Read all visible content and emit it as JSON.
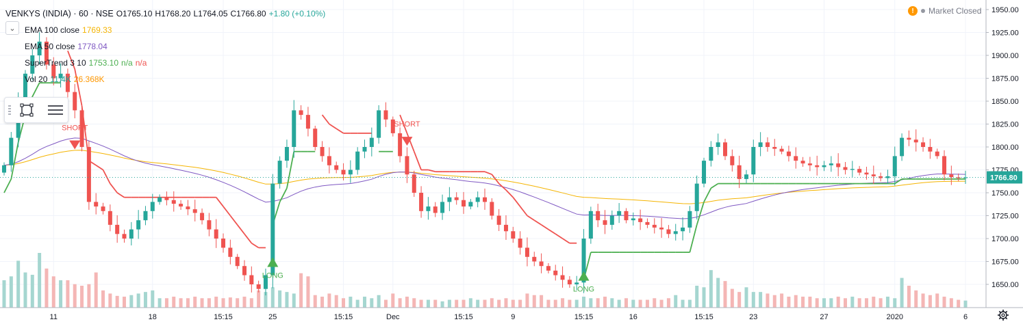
{
  "header": {
    "symbol": "VENKYS (INDIA) · 60 · NSE",
    "open": "O1765.10",
    "high": "H1768.20",
    "low": "L1764.05",
    "close": "C1766.80",
    "change": "+1.80 (+0.10%)",
    "market_status": "Market Closed"
  },
  "indicators": [
    {
      "label": "EMA 100 close",
      "value": "1769.33",
      "color": "#f5b400"
    },
    {
      "label": "EMA 50 close",
      "value": "1778.04",
      "color": "#7e57c2"
    },
    {
      "label": "SuperTrend 3 10",
      "value": "1753.10",
      "extra1": "n/a",
      "extra2": "n/a",
      "color": "#4caf50"
    },
    {
      "label": "Vol 20",
      "value": "11.4K",
      "extra1": "26.368K",
      "color": "#26a69a"
    }
  ],
  "colors": {
    "up": "#26a69a",
    "down": "#ef5350",
    "ema100": "#f5b400",
    "ema50": "#7e57c2",
    "st_up": "#4caf50",
    "st_down": "#ef5350"
  },
  "icons": [
    "chevron-down-icon",
    "drag-handle-icon",
    "rectangle-tool-icon",
    "list-tool-icon",
    "warning-icon",
    "gear-icon"
  ],
  "chart_data": {
    "type": "candlestick",
    "yticks": [
      1650,
      1675,
      1700,
      1725,
      1750,
      1775,
      1800,
      1825,
      1850,
      1875,
      1900,
      1925,
      1950
    ],
    "ytick_labels": [
      "1650.00",
      "1675.00",
      "1700.00",
      "1725.00",
      "1750.00",
      "1775.00",
      "1800.00",
      "1825.00",
      "1850.00",
      "1875.00",
      "1900.00",
      "1925.00",
      "1950.00"
    ],
    "ylim": [
      1628,
      1955
    ],
    "last_price_label": "1766.80",
    "last_price": 1766.8,
    "xticks": [
      {
        "label": "11",
        "i": 7
      },
      {
        "label": "18",
        "i": 21
      },
      {
        "label": "15:15",
        "i": 31
      },
      {
        "label": "25",
        "i": 38
      },
      {
        "label": "15:15",
        "i": 48
      },
      {
        "label": "Dec",
        "i": 55
      },
      {
        "label": "15:15",
        "i": 65
      },
      {
        "label": "9",
        "i": 72
      },
      {
        "label": "15:15",
        "i": 82
      },
      {
        "label": "16",
        "i": 89
      },
      {
        "label": "15:15",
        "i": 99
      },
      {
        "label": "23",
        "i": 106
      },
      {
        "label": "27",
        "i": 116
      },
      {
        "label": "2020",
        "i": 126
      },
      {
        "label": "6",
        "i": 136
      }
    ],
    "annotations": [
      {
        "text": "SHORT",
        "i": 10,
        "price": 1822,
        "type": "short"
      },
      {
        "text": "LONG",
        "i": 38,
        "price": 1672,
        "type": "long"
      },
      {
        "text": "SHORT",
        "i": 57,
        "price": 1826,
        "type": "short"
      },
      {
        "text": "LONG",
        "i": 82,
        "price": 1657,
        "type": "long"
      }
    ],
    "close": [
      1780,
      1810,
      1850,
      1880,
      1900,
      1915,
      1890,
      1875,
      1880,
      1860,
      1840,
      1800,
      1740,
      1735,
      1730,
      1715,
      1705,
      1700,
      1710,
      1720,
      1730,
      1740,
      1745,
      1742,
      1738,
      1735,
      1732,
      1728,
      1720,
      1710,
      1700,
      1690,
      1680,
      1670,
      1660,
      1650,
      1645,
      1660,
      1760,
      1785,
      1800,
      1840,
      1835,
      1820,
      1800,
      1790,
      1780,
      1775,
      1770,
      1775,
      1795,
      1800,
      1810,
      1840,
      1830,
      1815,
      1790,
      1770,
      1750,
      1730,
      1735,
      1728,
      1740,
      1745,
      1742,
      1735,
      1740,
      1745,
      1740,
      1725,
      1715,
      1708,
      1700,
      1690,
      1680,
      1675,
      1670,
      1665,
      1660,
      1655,
      1650,
      1652,
      1700,
      1730,
      1720,
      1715,
      1725,
      1730,
      1720,
      1722,
      1718,
      1715,
      1712,
      1710,
      1705,
      1708,
      1712,
      1730,
      1760,
      1785,
      1800,
      1805,
      1790,
      1780,
      1765,
      1770,
      1800,
      1805,
      1800,
      1798,
      1795,
      1790,
      1785,
      1782,
      1780,
      1778,
      1780,
      1782,
      1778,
      1775,
      1776,
      1772,
      1770,
      1768,
      1766,
      1768,
      1790,
      1810,
      1808,
      1805,
      1800,
      1795,
      1790,
      1770,
      1767,
      1766,
      1766.8
    ],
    "volume": [
      35,
      40,
      60,
      45,
      42,
      70,
      50,
      40,
      35,
      35,
      30,
      28,
      30,
      45,
      22,
      18,
      15,
      14,
      16,
      18,
      20,
      22,
      12,
      12,
      14,
      12,
      12,
      14,
      12,
      12,
      14,
      12,
      13,
      12,
      14,
      12,
      22,
      20,
      26,
      22,
      20,
      18,
      44,
      40,
      16,
      14,
      18,
      16,
      12,
      14,
      10,
      14,
      12,
      16,
      10,
      18,
      12,
      14,
      12,
      10,
      10,
      10,
      8,
      10,
      10,
      10,
      12,
      10,
      10,
      12,
      10,
      12,
      10,
      10,
      18,
      16,
      16,
      10,
      10,
      12,
      10,
      10,
      14,
      12,
      12,
      14,
      12,
      10,
      12,
      10,
      10,
      10,
      12,
      10,
      12,
      16,
      10,
      10,
      28,
      26,
      48,
      38,
      34,
      24,
      20,
      26,
      20,
      20,
      18,
      16,
      18,
      14,
      16,
      14,
      14,
      12,
      12,
      12,
      14,
      12,
      14,
      12,
      12,
      14,
      12,
      14,
      12,
      38,
      28,
      22,
      18,
      16,
      18,
      14,
      12,
      10,
      9
    ]
  }
}
